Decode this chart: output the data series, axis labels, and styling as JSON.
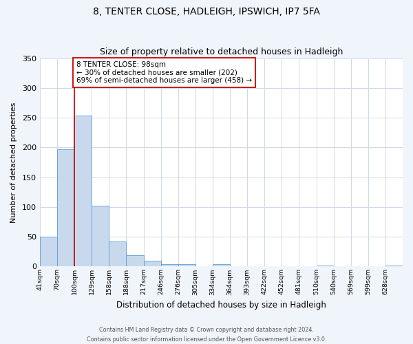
{
  "title": "8, TENTER CLOSE, HADLEIGH, IPSWICH, IP7 5FA",
  "subtitle": "Size of property relative to detached houses in Hadleigh",
  "xlabel": "Distribution of detached houses by size in Hadleigh",
  "ylabel": "Number of detached properties",
  "bin_labels": [
    "41sqm",
    "70sqm",
    "100sqm",
    "129sqm",
    "158sqm",
    "188sqm",
    "217sqm",
    "246sqm",
    "276sqm",
    "305sqm",
    "334sqm",
    "364sqm",
    "393sqm",
    "422sqm",
    "452sqm",
    "481sqm",
    "510sqm",
    "540sqm",
    "569sqm",
    "599sqm",
    "628sqm"
  ],
  "bar_values": [
    50,
    197,
    253,
    102,
    42,
    19,
    10,
    4,
    4,
    0,
    4,
    0,
    0,
    0,
    0,
    0,
    2,
    0,
    0,
    0,
    2
  ],
  "bar_color": "#c8d9ed",
  "bar_edge_color": "#5b9bd5",
  "ylim": [
    0,
    350
  ],
  "yticks": [
    0,
    50,
    100,
    150,
    200,
    250,
    300,
    350
  ],
  "property_line_color": "#cc0000",
  "annotation_text": "8 TENTER CLOSE: 98sqm\n← 30% of detached houses are smaller (202)\n69% of semi-detached houses are larger (458) →",
  "annotation_box_facecolor": "#ffffff",
  "annotation_box_edgecolor": "#cc0000",
  "footer_text": "Contains HM Land Registry data © Crown copyright and database right 2024.\nContains public sector information licensed under the Open Government Licence v3.0.",
  "bg_color": "#f0f4fb",
  "plot_bg_color": "#ffffff",
  "grid_color": "#d0d8e8",
  "title_fontsize": 10,
  "subtitle_fontsize": 9
}
